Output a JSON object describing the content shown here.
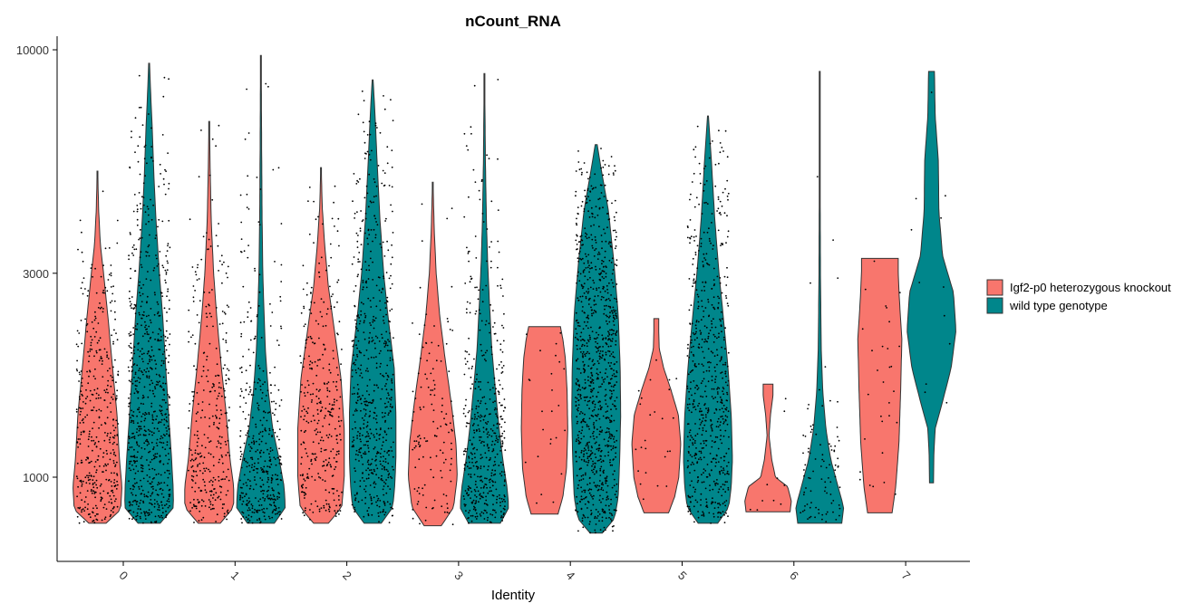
{
  "chart_data": {
    "type": "violin",
    "title": "nCount_RNA",
    "xlabel": "Identity",
    "ylabel": "",
    "y_scale": "log",
    "ylim": [
      550,
      10500
    ],
    "y_ticks": [
      "1000",
      "3000",
      "10000"
    ],
    "categories": [
      "0",
      "1",
      "2",
      "3",
      "4",
      "5",
      "6",
      "7"
    ],
    "legend_position": "right",
    "series": [
      {
        "name": "Igf2-p0 heterozygous knockout",
        "color": "#F8766D",
        "violins": [
          {
            "category": "0",
            "min": 780,
            "max": 5200,
            "n": 420,
            "shape": [
              [
                780,
                0.35
              ],
              [
                840,
                0.95
              ],
              [
                950,
                1
              ],
              [
                1100,
                0.9
              ],
              [
                1400,
                0.8
              ],
              [
                1800,
                0.62
              ],
              [
                2400,
                0.42
              ],
              [
                3000,
                0.25
              ],
              [
                3500,
                0.12
              ],
              [
                4200,
                0.05
              ],
              [
                5200,
                0.01
              ]
            ]
          },
          {
            "category": "1",
            "min": 780,
            "max": 6800,
            "n": 320,
            "shape": [
              [
                780,
                0.45
              ],
              [
                850,
                1
              ],
              [
                950,
                1
              ],
              [
                1100,
                0.85
              ],
              [
                1400,
                0.7
              ],
              [
                1800,
                0.5
              ],
              [
                2400,
                0.3
              ],
              [
                3000,
                0.18
              ],
              [
                4000,
                0.08
              ],
              [
                5200,
                0.04
              ],
              [
                6800,
                0.01
              ]
            ]
          },
          {
            "category": "2",
            "min": 780,
            "max": 5300,
            "n": 330,
            "shape": [
              [
                780,
                0.3
              ],
              [
                850,
                0.85
              ],
              [
                1000,
                0.95
              ],
              [
                1300,
                0.95
              ],
              [
                1700,
                0.82
              ],
              [
                2200,
                0.55
              ],
              [
                2800,
                0.3
              ],
              [
                3500,
                0.15
              ],
              [
                4300,
                0.05
              ],
              [
                5300,
                0.01
              ]
            ]
          },
          {
            "category": "3",
            "min": 770,
            "max": 4900,
            "n": 130,
            "shape": [
              [
                770,
                0.35
              ],
              [
                850,
                0.85
              ],
              [
                1000,
                1
              ],
              [
                1200,
                0.95
              ],
              [
                1500,
                0.75
              ],
              [
                1900,
                0.5
              ],
              [
                2400,
                0.28
              ],
              [
                3000,
                0.14
              ],
              [
                3800,
                0.06
              ],
              [
                4900,
                0.01
              ]
            ]
          },
          {
            "category": "4",
            "min": 820,
            "max": 2250,
            "n": 25,
            "shape": [
              [
                820,
                0.55
              ],
              [
                900,
                0.75
              ],
              [
                1050,
                0.9
              ],
              [
                1300,
                0.95
              ],
              [
                1600,
                0.92
              ],
              [
                1900,
                0.85
              ],
              [
                2100,
                0.75
              ],
              [
                2250,
                0.65
              ]
            ]
          },
          {
            "category": "5",
            "min": 825,
            "max": 2350,
            "n": 25,
            "shape": [
              [
                825,
                0.5
              ],
              [
                900,
                0.75
              ],
              [
                1000,
                0.92
              ],
              [
                1200,
                1
              ],
              [
                1400,
                0.9
              ],
              [
                1600,
                0.6
              ],
              [
                1800,
                0.3
              ],
              [
                2000,
                0.12
              ],
              [
                2200,
                0.1
              ],
              [
                2350,
                0.1
              ]
            ]
          },
          {
            "category": "6",
            "min": 830,
            "max": 1650,
            "n": 10,
            "shape": [
              [
                830,
                0.9
              ],
              [
                880,
                0.95
              ],
              [
                950,
                0.8
              ],
              [
                1000,
                0.3
              ],
              [
                1100,
                0.15
              ],
              [
                1250,
                0.04
              ],
              [
                1400,
                0.1
              ],
              [
                1550,
                0.2
              ],
              [
                1650,
                0.2
              ]
            ]
          },
          {
            "category": "7",
            "min": 825,
            "max": 3250,
            "n": 30,
            "shape": [
              [
                825,
                0.5
              ],
              [
                950,
                0.65
              ],
              [
                1200,
                0.78
              ],
              [
                1600,
                0.85
              ],
              [
                2100,
                0.9
              ],
              [
                2600,
                0.8
              ],
              [
                3000,
                0.75
              ],
              [
                3250,
                0.75
              ]
            ]
          }
        ]
      },
      {
        "name": "wild type genotype",
        "color": "#00868B",
        "violins": [
          {
            "category": "0",
            "min": 780,
            "max": 9300,
            "n": 720,
            "shape": [
              [
                780,
                0.45
              ],
              [
                850,
                1
              ],
              [
                950,
                0.98
              ],
              [
                1100,
                0.92
              ],
              [
                1400,
                0.8
              ],
              [
                1800,
                0.68
              ],
              [
                2400,
                0.55
              ],
              [
                3000,
                0.42
              ],
              [
                4000,
                0.28
              ],
              [
                5000,
                0.2
              ],
              [
                6500,
                0.13
              ],
              [
                8000,
                0.06
              ],
              [
                9300,
                0.02
              ]
            ]
          },
          {
            "category": "1",
            "min": 780,
            "max": 9700,
            "n": 400,
            "shape": [
              [
                780,
                0.55
              ],
              [
                850,
                1
              ],
              [
                950,
                0.95
              ],
              [
                1100,
                0.75
              ],
              [
                1300,
                0.48
              ],
              [
                1600,
                0.3
              ],
              [
                2000,
                0.18
              ],
              [
                2500,
                0.12
              ],
              [
                3000,
                0.08
              ],
              [
                4000,
                0.05
              ],
              [
                6000,
                0.03
              ],
              [
                8000,
                0.02
              ],
              [
                9700,
                0.01
              ]
            ]
          },
          {
            "category": "2",
            "min": 780,
            "max": 8500,
            "n": 600,
            "shape": [
              [
                780,
                0.35
              ],
              [
                850,
                0.82
              ],
              [
                950,
                0.9
              ],
              [
                1100,
                0.95
              ],
              [
                1400,
                0.95
              ],
              [
                1800,
                0.88
              ],
              [
                2400,
                0.62
              ],
              [
                3000,
                0.45
              ],
              [
                4000,
                0.3
              ],
              [
                5500,
                0.18
              ],
              [
                7000,
                0.1
              ],
              [
                8500,
                0.02
              ]
            ]
          },
          {
            "category": "3",
            "min": 780,
            "max": 8800,
            "n": 480,
            "shape": [
              [
                780,
                0.65
              ],
              [
                850,
                1
              ],
              [
                950,
                0.92
              ],
              [
                1100,
                0.75
              ],
              [
                1300,
                0.6
              ],
              [
                1600,
                0.45
              ],
              [
                2000,
                0.3
              ],
              [
                2600,
                0.2
              ],
              [
                3200,
                0.13
              ],
              [
                4000,
                0.08
              ],
              [
                5500,
                0.04
              ],
              [
                8800,
                0.01
              ]
            ]
          },
          {
            "category": "4",
            "min": 740,
            "max": 6000,
            "n": 950,
            "shape": [
              [
                740,
                0.25
              ],
              [
                800,
                0.75
              ],
              [
                900,
                0.9
              ],
              [
                1100,
                0.96
              ],
              [
                1400,
                1
              ],
              [
                1800,
                0.98
              ],
              [
                2400,
                0.9
              ],
              [
                3200,
                0.72
              ],
              [
                4200,
                0.5
              ],
              [
                5200,
                0.22
              ],
              [
                6000,
                0.04
              ]
            ]
          },
          {
            "category": "5",
            "min": 780,
            "max": 7000,
            "n": 620,
            "shape": [
              [
                780,
                0.4
              ],
              [
                850,
                0.85
              ],
              [
                950,
                0.95
              ],
              [
                1100,
                1
              ],
              [
                1400,
                0.95
              ],
              [
                1800,
                0.82
              ],
              [
                2400,
                0.62
              ],
              [
                3000,
                0.45
              ],
              [
                4000,
                0.28
              ],
              [
                5500,
                0.14
              ],
              [
                7000,
                0.02
              ]
            ]
          },
          {
            "category": "6",
            "min": 780,
            "max": 8900,
            "n": 90,
            "shape": [
              [
                780,
                0.9
              ],
              [
                850,
                0.98
              ],
              [
                950,
                0.75
              ],
              [
                1100,
                0.45
              ],
              [
                1300,
                0.25
              ],
              [
                1600,
                0.12
              ],
              [
                2000,
                0.06
              ],
              [
                3000,
                0.03
              ],
              [
                5000,
                0.015
              ],
              [
                8900,
                0.01
              ]
            ]
          },
          {
            "category": "7",
            "min": 970,
            "max": 8900,
            "n": 12,
            "shape": [
              [
                970,
                0.08
              ],
              [
                1150,
                0.1
              ],
              [
                1300,
                0.15
              ],
              [
                1500,
                0.45
              ],
              [
                1800,
                0.8
              ],
              [
                2200,
                1
              ],
              [
                2700,
                0.9
              ],
              [
                3300,
                0.45
              ],
              [
                4200,
                0.3
              ],
              [
                5500,
                0.28
              ],
              [
                7000,
                0.15
              ],
              [
                8900,
                0.12
              ]
            ]
          }
        ]
      }
    ]
  }
}
